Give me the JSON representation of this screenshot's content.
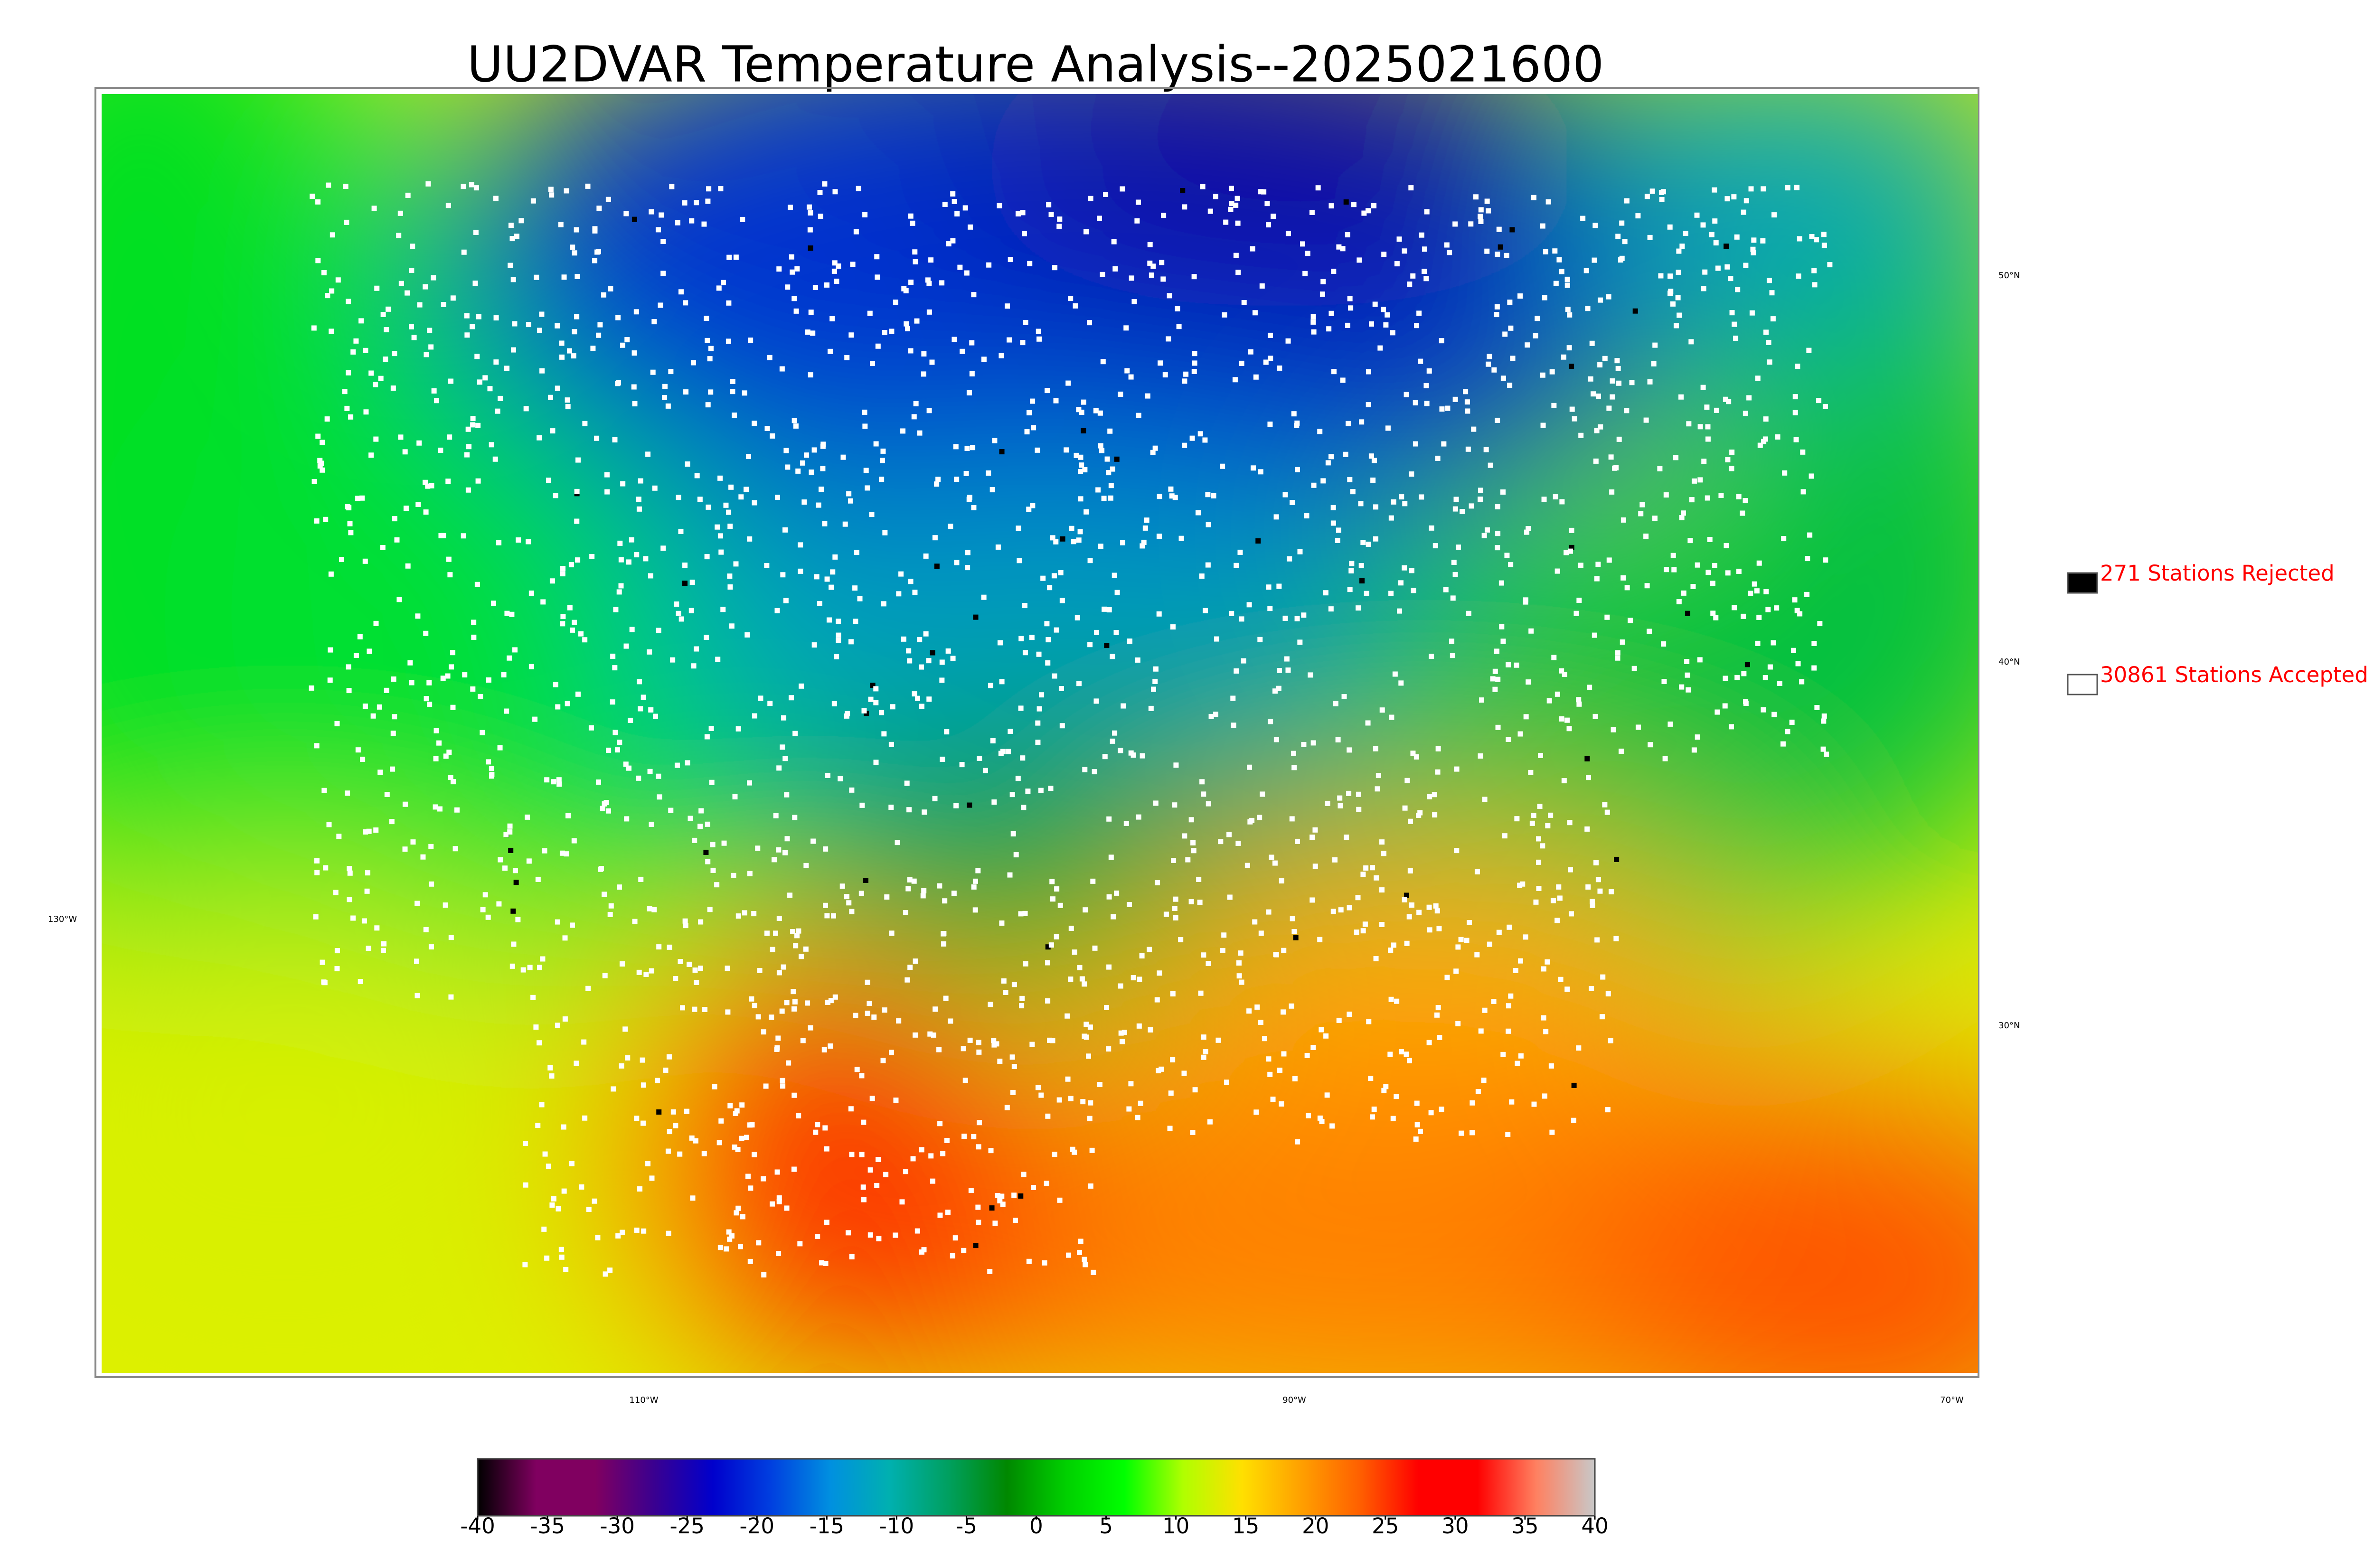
{
  "title": "UU2DVAR Temperature Analysis--2025021600",
  "legend": [
    {
      "label": "271 Stations Rejected",
      "color": "#000000"
    },
    {
      "label": "30861 Stations Accepted",
      "color": "#ffffff"
    }
  ],
  "legend_text_color": "#ff0000",
  "latitude_labels": [
    "50°N",
    "40°N",
    "30°N"
  ],
  "longitude_labels": [
    "130°W",
    "110°W",
    "90°W",
    "70°W"
  ],
  "colorbar": {
    "range": [
      -40,
      40
    ],
    "ticks": [
      -40,
      -35,
      -30,
      -25,
      -20,
      -15,
      -10,
      -5,
      0,
      5,
      10,
      15,
      20,
      25,
      30,
      35,
      40
    ],
    "colors": [
      "#000000",
      "#800060",
      "#800060",
      "#3a0090",
      "#0000cc",
      "#0040e0",
      "#0090e0",
      "#00b0b0",
      "#00a060",
      "#008800",
      "#00d000",
      "#00ff00",
      "#b0ff00",
      "#ffe000",
      "#ffa000",
      "#ff6000",
      "#ff0000",
      "#ff0000",
      "#ff8060",
      "#c8c8c8"
    ]
  }
}
